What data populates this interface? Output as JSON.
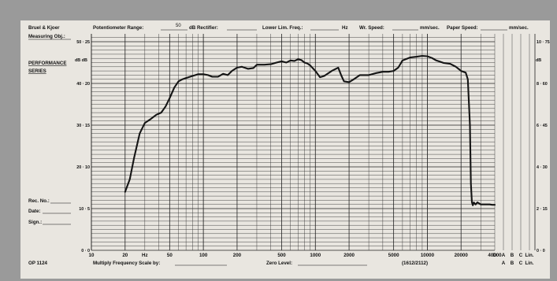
{
  "header": {
    "brand": "Bruel & Kjoer",
    "measuring_obj": "Measuring Obj.:",
    "series_title_1": "PERFORMANCE",
    "series_title_2": "SERIES",
    "pot_range_label": "Potentiometer Range:",
    "pot_range_value": "50",
    "db_rectifier": "dB Rectifier:",
    "lower_lim": "Lower Lim. Freq.:",
    "hz": "Hz",
    "wr_speed": "Wr. Speed:",
    "mm_sec_1": "mm/sec.",
    "paper_speed": "Paper Speed:",
    "mm_sec_2": "mm/sec."
  },
  "side_fields": {
    "rec_no": "Rec. No.:",
    "date": "Date:",
    "sign": "Sign.:"
  },
  "footer": {
    "form_no": "OP 1124",
    "multiply": "Multiply Frequency Scale by:",
    "zero_level": "Zero Level:",
    "code": "(1612/2112)"
  },
  "chart_data": {
    "type": "line",
    "title": "",
    "xlabel": "Hz",
    "ylabel": "dB",
    "x_scale": "log",
    "xlim": [
      10,
      40000
    ],
    "ylim": [
      0,
      50
    ],
    "grid": true,
    "x_ticks": [
      "10",
      "20",
      "Hz",
      "50",
      "100",
      "200",
      "500",
      "1000",
      "2000",
      "5000",
      "10000",
      "20000",
      "40000"
    ],
    "x_tick_values": [
      10,
      20,
      30,
      50,
      100,
      200,
      500,
      1000,
      2000,
      5000,
      10000,
      20000,
      40000
    ],
    "weighting_labels_top": [
      "D",
      "A",
      "B",
      "C",
      "Lin."
    ],
    "weighting_labels_bottom": [
      "A",
      "B",
      "C",
      "Lin."
    ],
    "y_ticks_left": [
      {
        "db": 50,
        "label": "50 · 25"
      },
      {
        "db": 40,
        "label": "40 · 20"
      },
      {
        "db": 30,
        "label": "30 · 15"
      },
      {
        "db": 20,
        "label": "20 · 10"
      },
      {
        "db": 10,
        "label": "10 · 5"
      },
      {
        "db": 0,
        "label": "0 · 0"
      }
    ],
    "y_unit_left": "dB dB",
    "y_ticks_right": [
      {
        "db": 50,
        "label": "10 · 75"
      },
      {
        "db": 40,
        "label": "8 · 60"
      },
      {
        "db": 30,
        "label": "6 · 45"
      },
      {
        "db": 20,
        "label": "4 · 30"
      },
      {
        "db": 10,
        "label": "2 · 15"
      },
      {
        "db": 0,
        "label": "0 · 0"
      }
    ],
    "y_unit_right": "dB",
    "series": [
      {
        "x": [
          20,
          22,
          24,
          27,
          30,
          34,
          38,
          42,
          46,
          50,
          55,
          60,
          65,
          70,
          80,
          90,
          100,
          110,
          120,
          135,
          150,
          165,
          180,
          200,
          220,
          250,
          280,
          300,
          350,
          400,
          450,
          500,
          550,
          600,
          650,
          700,
          750,
          800,
          850,
          900,
          1000,
          1100,
          1200,
          1400,
          1600,
          1700,
          1800,
          2000,
          2200,
          2500,
          3000,
          3500,
          4000,
          4500,
          5000,
          5500,
          6000,
          7000,
          8000,
          9000,
          10000,
          11000,
          12000,
          13000,
          14000,
          16000,
          18000,
          20000,
          22000,
          23000,
          24000,
          24500,
          25000,
          25500,
          26000,
          26500,
          27000,
          28000,
          30000,
          32000,
          34000,
          36000,
          38000,
          40000
        ],
        "y": [
          14,
          17,
          22,
          28,
          30.5,
          31.5,
          32.5,
          33,
          34.5,
          36.5,
          39,
          40.5,
          41,
          41.3,
          41.8,
          42.2,
          42.2,
          42,
          41.6,
          41.6,
          42.3,
          42,
          43,
          43.8,
          44,
          43.5,
          43.7,
          44.5,
          44.5,
          44.6,
          45,
          45.3,
          45,
          45.5,
          45.4,
          45.8,
          45.6,
          45,
          44.8,
          44.3,
          43,
          41.5,
          41.8,
          43,
          43.8,
          42,
          40.5,
          40.3,
          41,
          42,
          42,
          42.5,
          42.8,
          42.8,
          43,
          43.8,
          45.5,
          46.2,
          46.4,
          46.6,
          46.5,
          46.1,
          45.5,
          45.2,
          44.9,
          44.7,
          44,
          43,
          42.6,
          41,
          30,
          16,
          11.5,
          10.8,
          11.5,
          11.2,
          11,
          11.5,
          11,
          11,
          11,
          11,
          10.9,
          10.9
        ]
      }
    ]
  }
}
